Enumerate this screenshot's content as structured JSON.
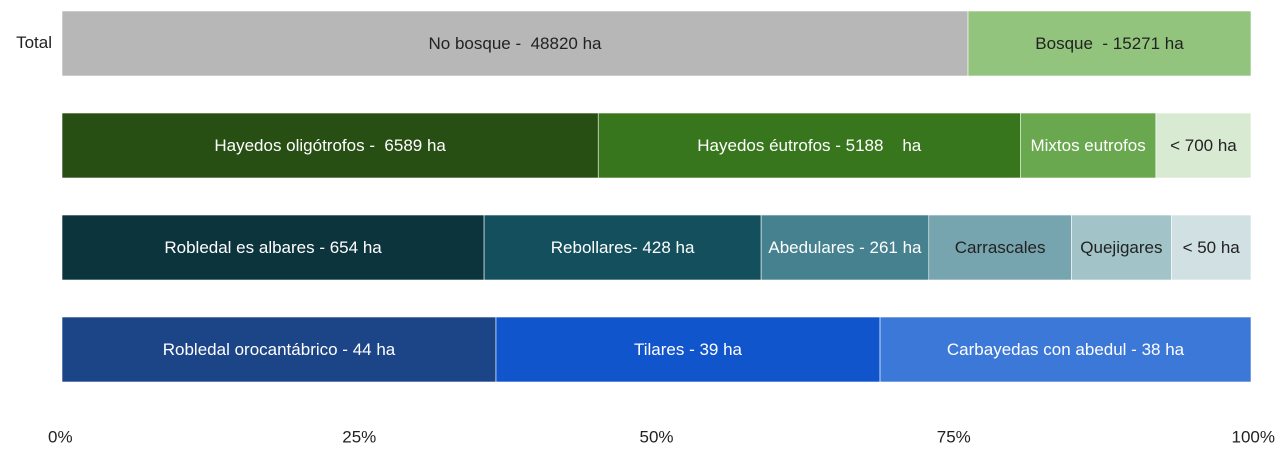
{
  "chart_data": {
    "type": "stacked_bar_100",
    "rows": [
      {
        "label": "Total",
        "segments": [
          {
            "label": "No bosque -  48820 ha",
            "value": 76.2,
            "color": "#b7b7b7"
          },
          {
            "label": "Bosque  - 15271 ha",
            "value": 23.8,
            "color": "#93c47d"
          }
        ]
      },
      {
        "label": null,
        "segments": [
          {
            "label": "Hayedos oligótrofos -  6589 ha",
            "value": 45.1,
            "color": "#274e13"
          },
          {
            "label": "Hayedos éutrofos - 5188    ha",
            "value": 35.5,
            "color": "#38761d"
          },
          {
            "label": "Mixtos eutrofos",
            "value": 11.4,
            "color": "#6aa84f"
          },
          {
            "label": "< 700 ha",
            "value": 8.0,
            "color": "#d9ead3"
          }
        ]
      },
      {
        "label": null,
        "segments": [
          {
            "label": "Robledal es albares - 654 ha",
            "value": 35.5,
            "color": "#0c343d"
          },
          {
            "label": "Rebollares- 428 ha",
            "value": 23.3,
            "color": "#134f5c"
          },
          {
            "label": "Abedulares - 261 ha",
            "value": 14.1,
            "color": "#45818e"
          },
          {
            "label": "Carrascales",
            "value": 12.0,
            "color": "#76a5af"
          },
          {
            "label": "Quejigares",
            "value": 8.4,
            "color": "#a2c4c9"
          },
          {
            "label": "< 50 ha",
            "value": 6.7,
            "color": "#d0e0e3"
          }
        ]
      },
      {
        "label": null,
        "segments": [
          {
            "label": "Robledal orocantábrico - 44 ha",
            "value": 36.5,
            "color": "#1c4587"
          },
          {
            "label": "Tilares - 39 ha",
            "value": 32.3,
            "color": "#1155cc"
          },
          {
            "label": "Carbayedas con abedul - 38 ha",
            "value": 31.2,
            "color": "#3c78d8"
          }
        ]
      }
    ],
    "xlim": [
      0,
      100
    ],
    "xticks": [
      {
        "value": 0,
        "label": "0%"
      },
      {
        "value": 25,
        "label": "25%"
      },
      {
        "value": 50,
        "label": "50%"
      },
      {
        "value": 75,
        "label": "75%"
      },
      {
        "value": 100,
        "label": "100%"
      }
    ]
  }
}
